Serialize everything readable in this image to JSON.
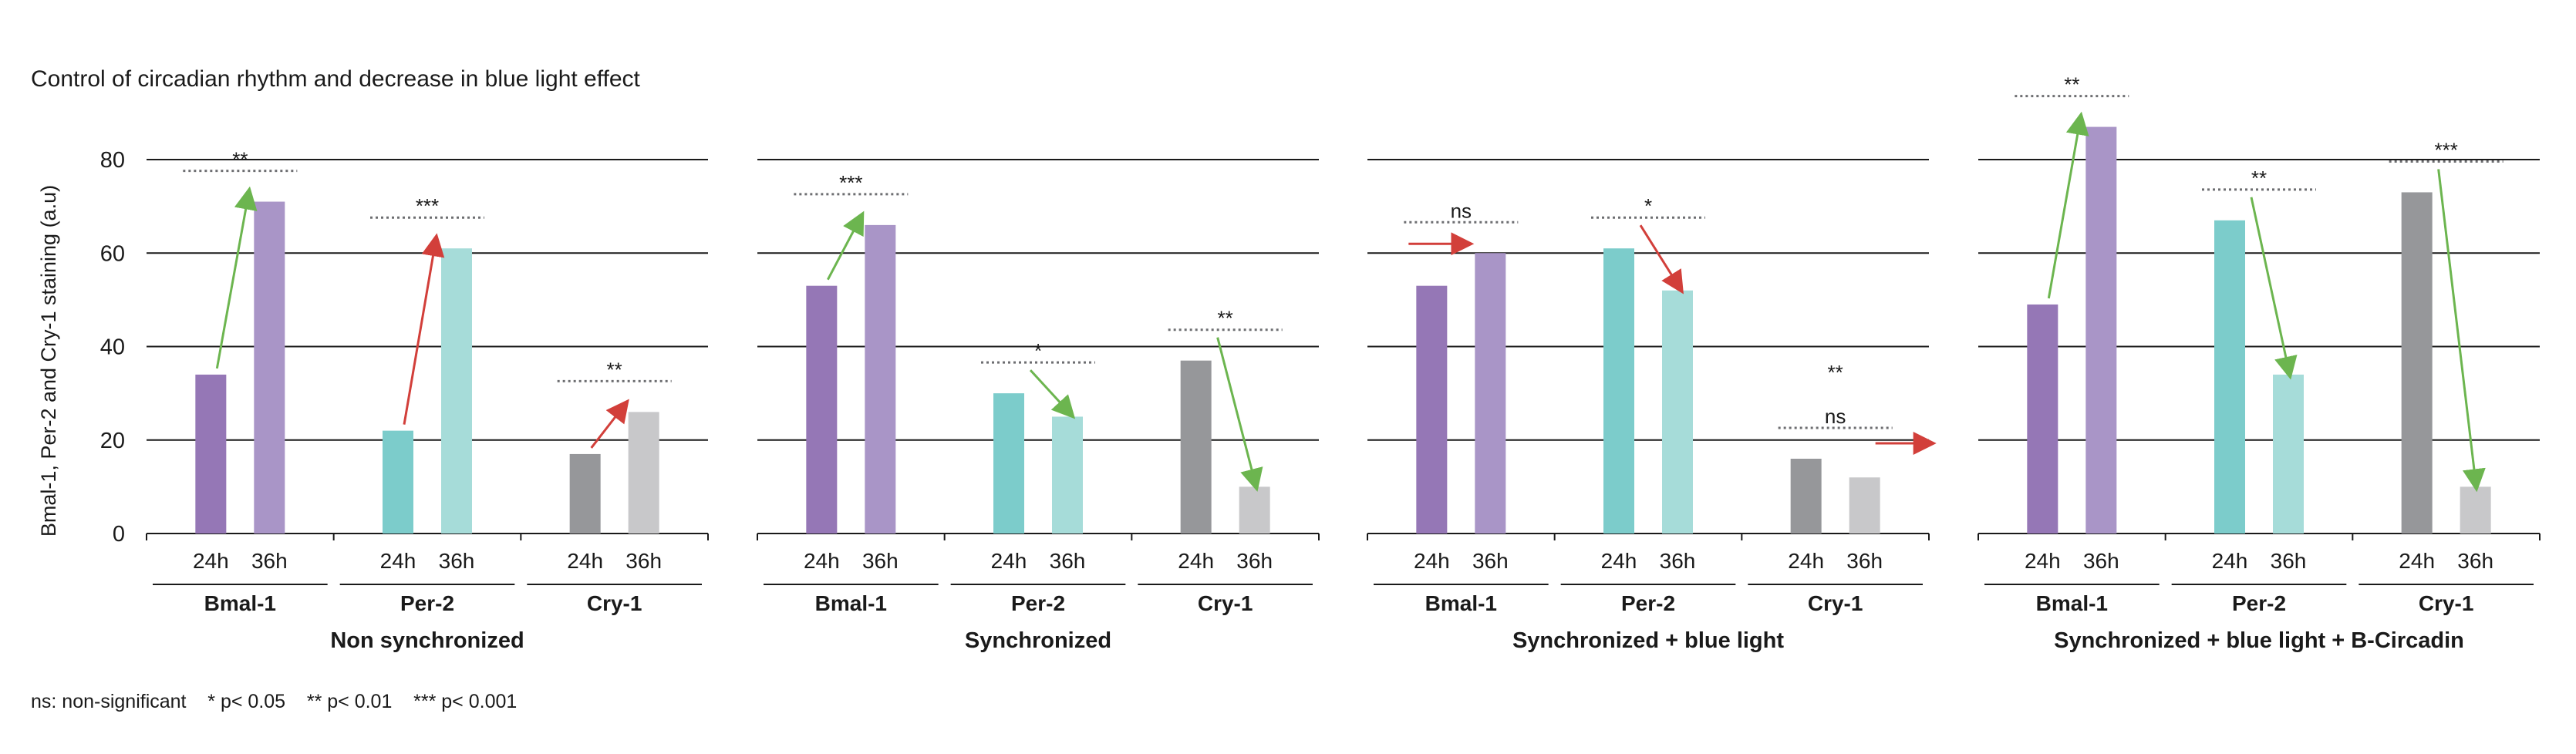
{
  "chart_data": {
    "type": "bar",
    "title": "Control of circadian rhythm and decrease in blue light effect",
    "ylabel": "Bmal-1, Per-2 and Cry-1 staining (a.u)",
    "ylim": [
      0,
      80
    ],
    "yticks": [
      0,
      20,
      40,
      60,
      80
    ],
    "grid": true,
    "footnote": "ns: non-significant    * p< 0.05    ** p< 0.01    *** p< 0.001",
    "colors": {
      "Bmal-1": [
        "#9577b6",
        "#a995c7"
      ],
      "Per-2": [
        "#7ccccb",
        "#a6dcd9"
      ],
      "Cry-1": [
        "#96979a",
        "#c8c8ca"
      ],
      "arrow_up": "#6cb54f",
      "arrow_red": "#d23f3a",
      "arrow_down": "#6cb54f"
    },
    "panels": [
      {
        "label": "Non synchronized",
        "groups": [
          {
            "name": "Bmal-1",
            "x": [
              "24h",
              "36h"
            ],
            "values": [
              34,
              71
            ],
            "significance": "**",
            "trend": "up"
          },
          {
            "name": "Per-2",
            "x": [
              "24h",
              "36h"
            ],
            "values": [
              22,
              61
            ],
            "significance": "***",
            "trend": "up-red"
          },
          {
            "name": "Cry-1",
            "x": [
              "24h",
              "36h"
            ],
            "values": [
              17,
              26
            ],
            "significance": "**",
            "trend": "up-red"
          }
        ]
      },
      {
        "label": "Synchronized",
        "groups": [
          {
            "name": "Bmal-1",
            "x": [
              "24h",
              "36h"
            ],
            "values": [
              53,
              66
            ],
            "significance": "***",
            "trend": "up"
          },
          {
            "name": "Per-2",
            "x": [
              "24h",
              "36h"
            ],
            "values": [
              30,
              25
            ],
            "significance": "*",
            "trend": "down"
          },
          {
            "name": "Cry-1",
            "x": [
              "24h",
              "36h"
            ],
            "values": [
              37,
              10
            ],
            "significance": "**",
            "trend": "down"
          }
        ]
      },
      {
        "label": "Synchronized + blue light",
        "groups": [
          {
            "name": "Bmal-1",
            "x": [
              "24h",
              "36h"
            ],
            "values": [
              53,
              60
            ],
            "significance": "ns",
            "trend": "flat-red"
          },
          {
            "name": "Per-2",
            "x": [
              "24h",
              "36h"
            ],
            "values": [
              61,
              52
            ],
            "significance": "*",
            "trend": "down-red"
          },
          {
            "name": "Cry-1",
            "x": [
              "24h",
              "36h"
            ],
            "values": [
              16,
              12
            ],
            "significance": "ns",
            "trend": "flat-red",
            "extra_label": "**"
          }
        ]
      },
      {
        "label": "Synchronized + blue light + B-Circadin",
        "groups": [
          {
            "name": "Bmal-1",
            "x": [
              "24h",
              "36h"
            ],
            "values": [
              49,
              87
            ],
            "significance": "**",
            "trend": "up"
          },
          {
            "name": "Per-2",
            "x": [
              "24h",
              "36h"
            ],
            "values": [
              67,
              34
            ],
            "significance": "**",
            "trend": "down"
          },
          {
            "name": "Cry-1",
            "x": [
              "24h",
              "36h"
            ],
            "values": [
              73,
              10
            ],
            "significance": "***",
            "trend": "down"
          }
        ]
      }
    ]
  }
}
